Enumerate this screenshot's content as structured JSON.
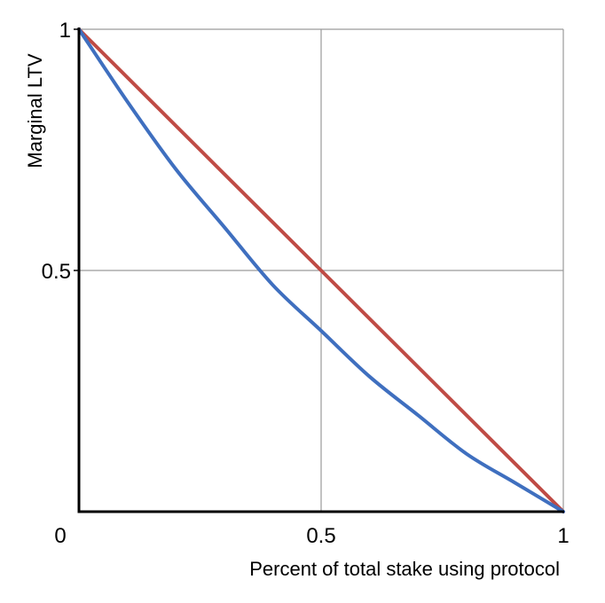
{
  "chart_data": {
    "type": "line",
    "title": "",
    "xlabel": "Percent of total stake using protocol",
    "ylabel": "Marginal LTV",
    "xlim": [
      0,
      1
    ],
    "ylim": [
      0,
      1
    ],
    "x_ticks": [
      {
        "value": 0,
        "label": "0"
      },
      {
        "value": 0.5,
        "label": "0.5"
      },
      {
        "value": 1,
        "label": "1"
      }
    ],
    "y_ticks": [
      {
        "value": 0.5,
        "label": "0.5"
      },
      {
        "value": 1,
        "label": "1"
      }
    ],
    "grid": true,
    "series": [
      {
        "color": "#bf4b45",
        "x": [
          0,
          0.25,
          0.5,
          0.75,
          1
        ],
        "y": [
          1,
          0.75,
          0.5,
          0.25,
          0
        ]
      },
      {
        "color": "#3f6fbf",
        "x": [
          0,
          0.1,
          0.2,
          0.3,
          0.4,
          0.5,
          0.6,
          0.7,
          0.8,
          0.9,
          1
        ],
        "y": [
          1,
          0.85,
          0.71,
          0.59,
          0.47,
          0.375,
          0.28,
          0.2,
          0.12,
          0.06,
          0
        ]
      }
    ]
  }
}
